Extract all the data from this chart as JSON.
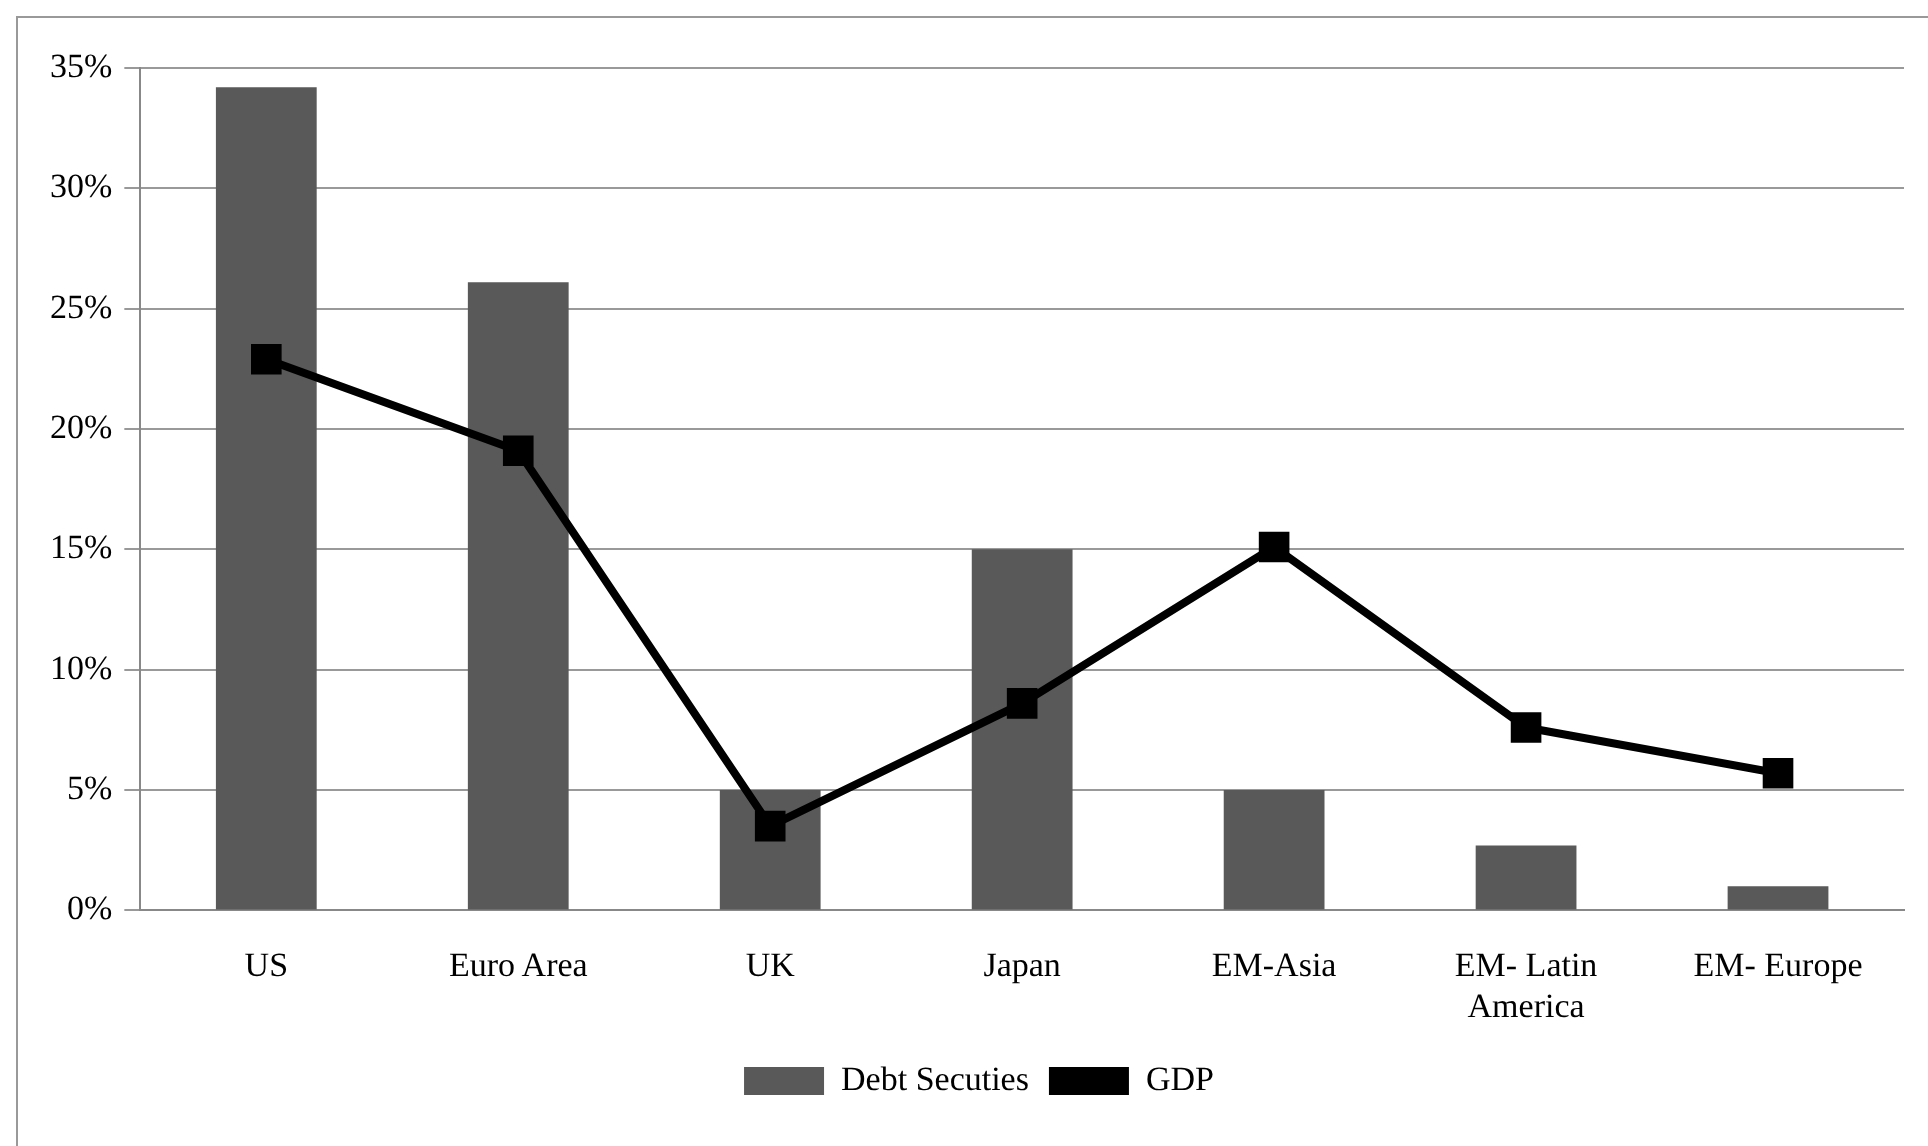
{
  "chart_data": {
    "type": "bar",
    "categories": [
      "US",
      "Euro Area",
      "UK",
      "Japan",
      "EM-Asia",
      "EM- Latin America",
      "EM- Europe"
    ],
    "series": [
      {
        "name": "Debt Secuties",
        "color": "#595959",
        "values": [
          34.2,
          26.1,
          5.0,
          15.0,
          5.0,
          2.7,
          1.0
        ]
      },
      {
        "name": "GDP",
        "type": "line",
        "color": "#000000",
        "values": [
          22.9,
          19.1,
          3.5,
          8.6,
          15.1,
          7.6,
          5.7
        ]
      }
    ],
    "ylim": [
      0,
      35
    ],
    "yticks": [
      {
        "value": 0,
        "label": "0%"
      },
      {
        "value": 5,
        "label": "5%"
      },
      {
        "value": 10,
        "label": "10%"
      },
      {
        "value": 15,
        "label": "15%"
      },
      {
        "value": 20,
        "label": "20%"
      },
      {
        "value": 25,
        "label": "25%"
      },
      {
        "value": 30,
        "label": "30%"
      },
      {
        "value": 35,
        "label": "35%"
      }
    ],
    "grid": "y",
    "legend": "bottom",
    "marker": "square",
    "line_style": "solid"
  }
}
